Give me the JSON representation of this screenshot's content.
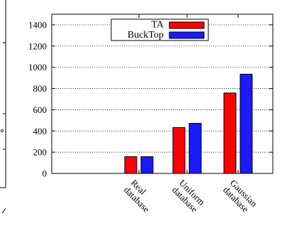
{
  "chart_data": {
    "type": "bar",
    "categories": [
      [
        "Real",
        "database"
      ],
      [
        "Uniform",
        "database"
      ],
      [
        "Gaussian",
        "database"
      ]
    ],
    "series": [
      {
        "name": "TA",
        "color": "#ff0000",
        "values": [
          158,
          432,
          758
        ]
      },
      {
        "name": "BuckTop",
        "color": "#1a1aff",
        "values": [
          158,
          472,
          935
        ]
      }
    ],
    "ylim": [
      0,
      1500
    ],
    "yticks": [
      0,
      200,
      400,
      600,
      800,
      1000,
      1200,
      1400
    ],
    "grid": true,
    "legend_position": "top-right",
    "title": "",
    "xlabel": "",
    "ylabel": ""
  }
}
